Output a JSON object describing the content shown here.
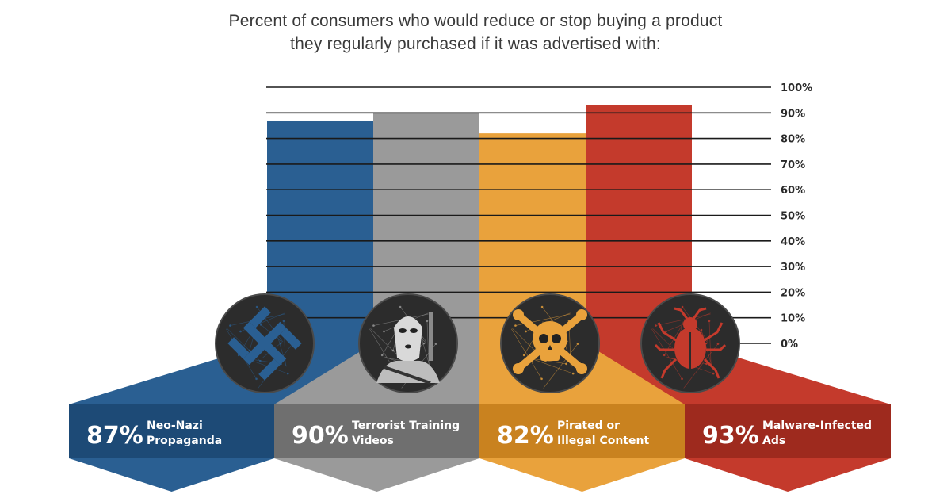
{
  "title_lines": [
    "Percent of consumers who would reduce or stop buying a product",
    "they regularly purchased if it was advertised with:"
  ],
  "chart_data": {
    "type": "bar",
    "title": "Percent of consumers who would reduce or stop buying a product they regularly purchased if it was advertised with:",
    "categories": [
      "Neo-Nazi Propaganda",
      "Terrorist Training Videos",
      "Pirated or Illegal Content",
      "Malware-Infected Ads"
    ],
    "values": [
      87,
      90,
      82,
      93
    ],
    "value_labels": [
      "87%",
      "90%",
      "82%",
      "93%"
    ],
    "label_lines": [
      [
        "Neo-Nazi",
        "Propaganda"
      ],
      [
        "Terrorist Training",
        "Videos"
      ],
      [
        "Pirated or",
        "Illegal Content"
      ],
      [
        "Malware-Infected",
        "Ads"
      ]
    ],
    "icons": [
      "swastika-icon",
      "masked-gunman-icon",
      "skull-crossbones-icon",
      "bug-icon"
    ],
    "colors": [
      "#2a5f92",
      "#9a9a9a",
      "#e9a23c",
      "#c43a2c"
    ],
    "dark_colors": [
      "#1d4a76",
      "#6f6f6f",
      "#c9821f",
      "#9e2a1e"
    ],
    "yticks": [
      "0%",
      "10%",
      "20%",
      "30%",
      "40%",
      "50%",
      "60%",
      "70%",
      "80%",
      "90%",
      "100%"
    ],
    "ylim": [
      0,
      100
    ],
    "grid": true,
    "ylabel": "",
    "xlabel": ""
  }
}
